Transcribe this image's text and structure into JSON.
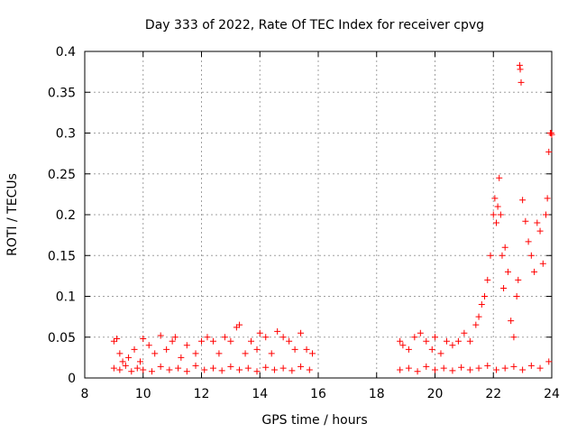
{
  "chart_data": {
    "type": "scatter",
    "title": "Day 333 of 2022, Rate Of TEC Index for receiver cpvg",
    "xlabel": "GPS time / hours",
    "ylabel": "ROTI / TECUs",
    "xlim": [
      8,
      24
    ],
    "ylim": [
      0,
      0.4
    ],
    "x_ticks": [
      8,
      10,
      12,
      14,
      16,
      18,
      20,
      22,
      24
    ],
    "x_tick_labels": [
      "8",
      "10",
      "12",
      "14",
      "16",
      "18",
      "20",
      "22",
      "24"
    ],
    "y_ticks": [
      0,
      0.05,
      0.1,
      0.15,
      0.2,
      0.25,
      0.3,
      0.35,
      0.4
    ],
    "y_tick_labels": [
      "0",
      "0.05",
      "0.1",
      "0.15",
      "0.2",
      "0.25",
      "0.3",
      "0.35",
      "0.4"
    ],
    "grid": true,
    "marker": "+",
    "color": "#ff0000",
    "series": [
      {
        "name": "ROTI",
        "points": [
          [
            9.0,
            0.045
          ],
          [
            9.1,
            0.048
          ],
          [
            9.2,
            0.03
          ],
          [
            9.3,
            0.02
          ],
          [
            9.5,
            0.025
          ],
          [
            9.7,
            0.035
          ],
          [
            9.9,
            0.02
          ],
          [
            10.0,
            0.048
          ],
          [
            10.2,
            0.04
          ],
          [
            10.4,
            0.03
          ],
          [
            10.6,
            0.052
          ],
          [
            10.8,
            0.035
          ],
          [
            11.0,
            0.045
          ],
          [
            11.1,
            0.05
          ],
          [
            11.3,
            0.025
          ],
          [
            11.5,
            0.04
          ],
          [
            11.8,
            0.03
          ],
          [
            12.0,
            0.045
          ],
          [
            12.2,
            0.05
          ],
          [
            12.4,
            0.045
          ],
          [
            12.6,
            0.03
          ],
          [
            12.8,
            0.05
          ],
          [
            13.0,
            0.045
          ],
          [
            13.2,
            0.062
          ],
          [
            13.3,
            0.065
          ],
          [
            13.5,
            0.03
          ],
          [
            13.7,
            0.045
          ],
          [
            13.9,
            0.035
          ],
          [
            14.0,
            0.055
          ],
          [
            14.2,
            0.05
          ],
          [
            14.4,
            0.03
          ],
          [
            14.6,
            0.057
          ],
          [
            14.8,
            0.05
          ],
          [
            15.0,
            0.045
          ],
          [
            15.2,
            0.035
          ],
          [
            15.4,
            0.055
          ],
          [
            15.6,
            0.035
          ],
          [
            15.8,
            0.03
          ],
          [
            18.8,
            0.045
          ],
          [
            18.9,
            0.04
          ],
          [
            19.1,
            0.035
          ],
          [
            19.3,
            0.05
          ],
          [
            19.5,
            0.055
          ],
          [
            19.7,
            0.045
          ],
          [
            19.9,
            0.035
          ],
          [
            20.0,
            0.05
          ],
          [
            20.2,
            0.03
          ],
          [
            20.4,
            0.045
          ],
          [
            20.6,
            0.04
          ],
          [
            20.8,
            0.045
          ],
          [
            21.0,
            0.055
          ],
          [
            21.2,
            0.045
          ],
          [
            21.4,
            0.065
          ],
          [
            21.5,
            0.075
          ],
          [
            21.6,
            0.09
          ],
          [
            21.7,
            0.1
          ],
          [
            21.8,
            0.12
          ],
          [
            21.9,
            0.15
          ],
          [
            22.0,
            0.2
          ],
          [
            22.05,
            0.22
          ],
          [
            22.1,
            0.19
          ],
          [
            22.15,
            0.21
          ],
          [
            22.2,
            0.245
          ],
          [
            22.25,
            0.2
          ],
          [
            22.3,
            0.15
          ],
          [
            22.35,
            0.11
          ],
          [
            22.4,
            0.16
          ],
          [
            22.5,
            0.13
          ],
          [
            22.6,
            0.07
          ],
          [
            22.7,
            0.05
          ],
          [
            22.8,
            0.1
          ],
          [
            22.85,
            0.12
          ],
          [
            22.9,
            0.383
          ],
          [
            22.92,
            0.378
          ],
          [
            22.95,
            0.362
          ],
          [
            23.0,
            0.218
          ],
          [
            23.1,
            0.192
          ],
          [
            23.2,
            0.167
          ],
          [
            23.3,
            0.15
          ],
          [
            23.4,
            0.13
          ],
          [
            23.5,
            0.19
          ],
          [
            23.6,
            0.18
          ],
          [
            23.7,
            0.14
          ],
          [
            23.8,
            0.2
          ],
          [
            23.85,
            0.22
          ],
          [
            23.9,
            0.277
          ],
          [
            23.95,
            0.3
          ],
          [
            23.98,
            0.3
          ],
          [
            24.0,
            0.298
          ],
          [
            9.0,
            0.012
          ],
          [
            9.2,
            0.01
          ],
          [
            9.4,
            0.015
          ],
          [
            9.6,
            0.008
          ],
          [
            9.8,
            0.012
          ],
          [
            10.0,
            0.01
          ],
          [
            10.3,
            0.008
          ],
          [
            10.6,
            0.014
          ],
          [
            10.9,
            0.01
          ],
          [
            11.2,
            0.012
          ],
          [
            11.5,
            0.008
          ],
          [
            11.8,
            0.015
          ],
          [
            12.1,
            0.01
          ],
          [
            12.4,
            0.012
          ],
          [
            12.7,
            0.009
          ],
          [
            13.0,
            0.014
          ],
          [
            13.3,
            0.01
          ],
          [
            13.6,
            0.012
          ],
          [
            13.9,
            0.008
          ],
          [
            14.2,
            0.013
          ],
          [
            14.5,
            0.01
          ],
          [
            14.8,
            0.012
          ],
          [
            15.1,
            0.009
          ],
          [
            15.4,
            0.014
          ],
          [
            15.7,
            0.01
          ],
          [
            18.8,
            0.01
          ],
          [
            19.1,
            0.012
          ],
          [
            19.4,
            0.008
          ],
          [
            19.7,
            0.014
          ],
          [
            20.0,
            0.01
          ],
          [
            20.3,
            0.012
          ],
          [
            20.6,
            0.009
          ],
          [
            20.9,
            0.013
          ],
          [
            21.2,
            0.01
          ],
          [
            21.5,
            0.012
          ],
          [
            21.8,
            0.015
          ],
          [
            22.1,
            0.01
          ],
          [
            22.4,
            0.012
          ],
          [
            22.7,
            0.014
          ],
          [
            23.0,
            0.01
          ],
          [
            23.3,
            0.015
          ],
          [
            23.6,
            0.012
          ],
          [
            23.9,
            0.02
          ]
        ]
      }
    ]
  }
}
